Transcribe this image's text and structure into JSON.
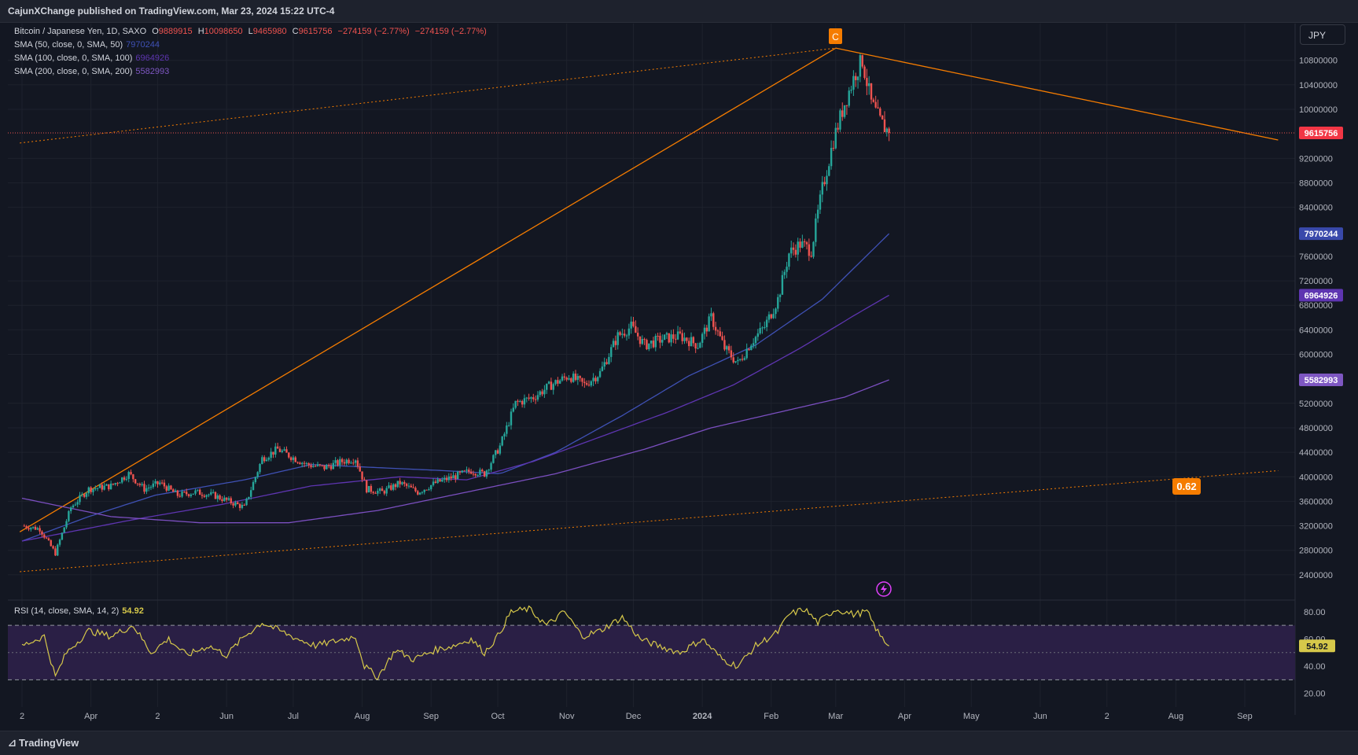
{
  "header": {
    "published_by": "CajunXChange published on TradingView.com, Mar 23, 2024 15:22 UTC-4"
  },
  "legend": {
    "symbol": "Bitcoin / Japanese Yen, 1D, SAXO",
    "o_label": "O",
    "o_value": "9889915",
    "h_label": "H",
    "h_value": "10098650",
    "l_label": "L",
    "l_value": "9465980",
    "c_label": "C",
    "c_value": "9615756",
    "change": "−274159 (−2.77%)",
    "change2": "−274159 (−2.77%)",
    "sma50_label": "SMA (50, close, 0, SMA, 50)",
    "sma50_value": "7970244",
    "sma100_label": "SMA (100, close, 0, SMA, 100)",
    "sma100_value": "6964926",
    "sma200_label": "SMA (200, close, 0, SMA, 200)",
    "sma200_value": "5582993",
    "rsi_label": "RSI (14, close, SMA, 14, 2)",
    "rsi_value": "54.92"
  },
  "currency_button": "JPY",
  "annotations": {
    "wave_label": "C",
    "fib_label": "0.62"
  },
  "footer": {
    "brand": "TradingView"
  },
  "colors": {
    "background": "#131722",
    "up": "#26a69a",
    "down": "#ef5350",
    "trend": "#f57c00",
    "sma50": "#3f51b5",
    "sma100": "#5e35b1",
    "sma200": "#7b4fc0",
    "rsi": "#d6c84a",
    "rsi_band": "#2a1f45"
  },
  "chart_data": {
    "type": "candlestick",
    "title": "",
    "price_axis": {
      "ticks": [
        "10800000",
        "10400000",
        "10000000",
        "9200000",
        "8800000",
        "8400000",
        "7600000",
        "7200000",
        "6800000",
        "6400000",
        "6000000",
        "5200000",
        "4800000",
        "4400000",
        "4000000",
        "3600000",
        "3200000",
        "2800000",
        "2400000"
      ],
      "range": [
        2000000,
        11400000
      ],
      "badges": [
        {
          "value": "9615756",
          "color": "#f23645"
        },
        {
          "value": "7970244",
          "color": "#3949ab"
        },
        {
          "value": "6964926",
          "color": "#5e35b1"
        },
        {
          "value": "5582993",
          "color": "#7e57c2"
        }
      ]
    },
    "time_axis": {
      "labels": [
        "2",
        "Apr",
        "2",
        "Jun",
        "Jul",
        "Aug",
        "Sep",
        "Oct",
        "Nov",
        "Dec",
        "2024",
        "Feb",
        "Mar",
        "Apr",
        "May",
        "Jun",
        "2",
        "Aug",
        "Sep"
      ],
      "day_index": [
        0,
        31,
        61,
        92,
        122,
        153,
        184,
        214,
        245,
        275,
        306,
        337,
        366,
        397,
        427,
        458,
        488,
        519,
        550
      ]
    },
    "candle_anchors": [
      [
        0,
        3200000
      ],
      [
        8,
        3150000
      ],
      [
        15,
        2750000
      ],
      [
        22,
        3500000
      ],
      [
        30,
        3800000
      ],
      [
        40,
        3850000
      ],
      [
        48,
        4050000
      ],
      [
        55,
        3800000
      ],
      [
        62,
        3900000
      ],
      [
        70,
        3700000
      ],
      [
        78,
        3750000
      ],
      [
        86,
        3700000
      ],
      [
        93,
        3600000
      ],
      [
        100,
        3500000
      ],
      [
        108,
        4300000
      ],
      [
        115,
        4450000
      ],
      [
        120,
        4350000
      ],
      [
        128,
        4200000
      ],
      [
        136,
        4150000
      ],
      [
        144,
        4250000
      ],
      [
        150,
        4300000
      ],
      [
        155,
        3800000
      ],
      [
        162,
        3750000
      ],
      [
        170,
        3900000
      ],
      [
        178,
        3750000
      ],
      [
        186,
        3900000
      ],
      [
        194,
        4000000
      ],
      [
        202,
        4100000
      ],
      [
        208,
        4050000
      ],
      [
        215,
        4500000
      ],
      [
        222,
        5200000
      ],
      [
        230,
        5300000
      ],
      [
        238,
        5500000
      ],
      [
        246,
        5650000
      ],
      [
        253,
        5500000
      ],
      [
        260,
        5700000
      ],
      [
        268,
        6300000
      ],
      [
        274,
        6450000
      ],
      [
        280,
        6150000
      ],
      [
        288,
        6250000
      ],
      [
        296,
        6300000
      ],
      [
        304,
        6150000
      ],
      [
        310,
        6600000
      ],
      [
        316,
        6100000
      ],
      [
        322,
        5850000
      ],
      [
        328,
        6200000
      ],
      [
        334,
        6450000
      ],
      [
        340,
        6900000
      ],
      [
        345,
        7650000
      ],
      [
        350,
        7800000
      ],
      [
        355,
        7700000
      ],
      [
        360,
        8700000
      ],
      [
        365,
        9500000
      ],
      [
        370,
        10100000
      ],
      [
        375,
        10600000
      ],
      [
        378,
        10800000
      ],
      [
        382,
        10100000
      ],
      [
        386,
        9800000
      ],
      [
        390,
        9615756
      ]
    ],
    "sma50_anchors": [
      [
        0,
        2950000
      ],
      [
        30,
        3350000
      ],
      [
        60,
        3700000
      ],
      [
        100,
        3950000
      ],
      [
        130,
        4200000
      ],
      [
        160,
        4150000
      ],
      [
        190,
        4100000
      ],
      [
        215,
        4050000
      ],
      [
        240,
        4400000
      ],
      [
        270,
        5000000
      ],
      [
        300,
        5650000
      ],
      [
        330,
        6150000
      ],
      [
        360,
        6900000
      ],
      [
        390,
        7970244
      ]
    ],
    "sma100_anchors": [
      [
        0,
        2950000
      ],
      [
        50,
        3300000
      ],
      [
        90,
        3550000
      ],
      [
        130,
        3850000
      ],
      [
        170,
        4000000
      ],
      [
        200,
        3950000
      ],
      [
        230,
        4250000
      ],
      [
        260,
        4650000
      ],
      [
        290,
        5050000
      ],
      [
        320,
        5500000
      ],
      [
        350,
        6100000
      ],
      [
        375,
        6650000
      ],
      [
        390,
        6964926
      ]
    ],
    "sma200_anchors": [
      [
        0,
        3650000
      ],
      [
        40,
        3350000
      ],
      [
        80,
        3250000
      ],
      [
        120,
        3250000
      ],
      [
        160,
        3450000
      ],
      [
        200,
        3750000
      ],
      [
        240,
        4050000
      ],
      [
        280,
        4450000
      ],
      [
        310,
        4800000
      ],
      [
        340,
        5050000
      ],
      [
        370,
        5300000
      ],
      [
        390,
        5582993
      ]
    ],
    "rsi": {
      "range": [
        10,
        88
      ],
      "ticks": [
        "80.00",
        "60.00",
        "40.00",
        "20.00"
      ],
      "levels": [
        70,
        30
      ],
      "mid": 50,
      "last": 54.92,
      "anchors": [
        [
          0,
          55
        ],
        [
          10,
          62
        ],
        [
          15,
          32
        ],
        [
          20,
          50
        ],
        [
          30,
          66
        ],
        [
          40,
          62
        ],
        [
          50,
          70
        ],
        [
          58,
          50
        ],
        [
          66,
          60
        ],
        [
          74,
          48
        ],
        [
          84,
          55
        ],
        [
          92,
          48
        ],
        [
          100,
          62
        ],
        [
          108,
          72
        ],
        [
          116,
          66
        ],
        [
          124,
          60
        ],
        [
          132,
          55
        ],
        [
          140,
          58
        ],
        [
          150,
          62
        ],
        [
          154,
          40
        ],
        [
          160,
          32
        ],
        [
          168,
          52
        ],
        [
          176,
          45
        ],
        [
          186,
          52
        ],
        [
          194,
          55
        ],
        [
          202,
          60
        ],
        [
          208,
          50
        ],
        [
          214,
          62
        ],
        [
          220,
          80
        ],
        [
          228,
          82
        ],
        [
          236,
          70
        ],
        [
          244,
          80
        ],
        [
          252,
          62
        ],
        [
          260,
          66
        ],
        [
          270,
          76
        ],
        [
          278,
          60
        ],
        [
          286,
          55
        ],
        [
          296,
          50
        ],
        [
          306,
          60
        ],
        [
          315,
          45
        ],
        [
          322,
          40
        ],
        [
          330,
          55
        ],
        [
          340,
          65
        ],
        [
          345,
          78
        ],
        [
          352,
          82
        ],
        [
          358,
          72
        ],
        [
          366,
          82
        ],
        [
          374,
          78
        ],
        [
          380,
          80
        ],
        [
          386,
          62
        ],
        [
          390,
          54.92
        ]
      ]
    },
    "trendlines": [
      {
        "style": "solid",
        "from": [
          -1,
          3100000
        ],
        "to": [
          366,
          11000000
        ]
      },
      {
        "style": "solid",
        "from": [
          366,
          11000000
        ],
        "to": [
          565,
          9500000
        ]
      },
      {
        "style": "dotted",
        "from": [
          -1,
          9450000
        ],
        "to": [
          366,
          11000000
        ]
      },
      {
        "style": "dotted",
        "from": [
          -1,
          2450000
        ],
        "to": [
          565,
          4100000
        ]
      }
    ],
    "current_price": 9615756
  }
}
